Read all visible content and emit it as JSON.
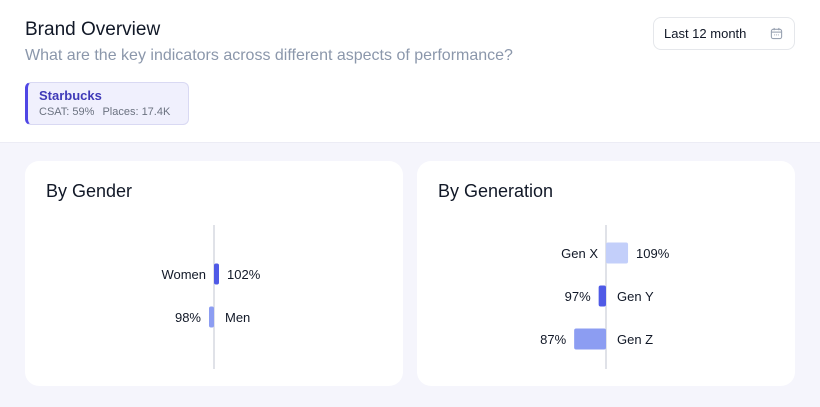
{
  "header": {
    "title": "Brand Overview",
    "subtitle": "What are the key indicators across different aspects of performance?",
    "date_range": "Last 12 month",
    "date_range_icon": "calendar-icon"
  },
  "brand": {
    "name": "Starbucks",
    "csat": "CSAT: 59%",
    "places": "Places: 17.4K",
    "accent": "#4f46e5"
  },
  "chart_data": [
    {
      "type": "bar",
      "title": "By Gender",
      "baseline": 100,
      "categories": [
        "Women",
        "Men"
      ],
      "values": [
        102,
        98
      ],
      "labels": [
        "102%",
        "98%"
      ],
      "colors": [
        "#4f5ae6",
        "#8c9df2"
      ]
    },
    {
      "type": "bar",
      "title": "By Generation",
      "baseline": 100,
      "categories": [
        "Gen X",
        "Gen Y",
        "Gen Z"
      ],
      "values": [
        109,
        97,
        87
      ],
      "labels": [
        "109%",
        "97%",
        "87%"
      ],
      "colors": [
        "#c3cffa",
        "#4f5ae6",
        "#8c9df2"
      ]
    }
  ]
}
